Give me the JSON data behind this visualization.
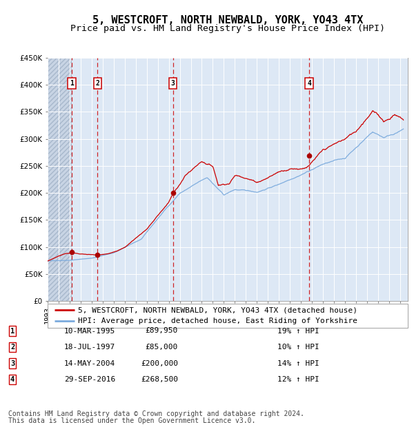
{
  "title": "5, WESTCROFT, NORTH NEWBALD, YORK, YO43 4TX",
  "subtitle": "Price paid vs. HM Land Registry's House Price Index (HPI)",
  "legend_line1": "5, WESTCROFT, NORTH NEWBALD, YORK, YO43 4TX (detached house)",
  "legend_line2": "HPI: Average price, detached house, East Riding of Yorkshire",
  "footer_line1": "Contains HM Land Registry data © Crown copyright and database right 2024.",
  "footer_line2": "This data is licensed under the Open Government Licence v3.0.",
  "transactions": [
    {
      "num": 1,
      "date": "10-MAR-1995",
      "price": 89950,
      "year": 1995.19,
      "pct": "19%",
      "dir": "↑"
    },
    {
      "num": 2,
      "date": "18-JUL-1997",
      "price": 85000,
      "year": 1997.54,
      "pct": "10%",
      "dir": "↑"
    },
    {
      "num": 3,
      "date": "14-MAY-2004",
      "price": 200000,
      "year": 2004.37,
      "pct": "14%",
      "dir": "↑"
    },
    {
      "num": 4,
      "date": "29-SEP-2016",
      "price": 268500,
      "year": 2016.75,
      "pct": "12%",
      "dir": "↑"
    }
  ],
  "hpi_color": "#7aaadd",
  "price_color": "#cc0000",
  "dot_color": "#aa0000",
  "vline_color": "#cc0000",
  "box_edge_color": "#cc0000",
  "bg_color": "#dde8f5",
  "grid_color": "#ffffff",
  "ylim": [
    0,
    450000
  ],
  "yticks": [
    0,
    50000,
    100000,
    150000,
    200000,
    250000,
    300000,
    350000,
    400000,
    450000
  ],
  "xlim_start": 1993.0,
  "xlim_end": 2025.7,
  "title_fontsize": 11,
  "subtitle_fontsize": 9.5,
  "axis_fontsize": 7.5,
  "legend_fontsize": 8,
  "table_fontsize": 8,
  "footer_fontsize": 7
}
